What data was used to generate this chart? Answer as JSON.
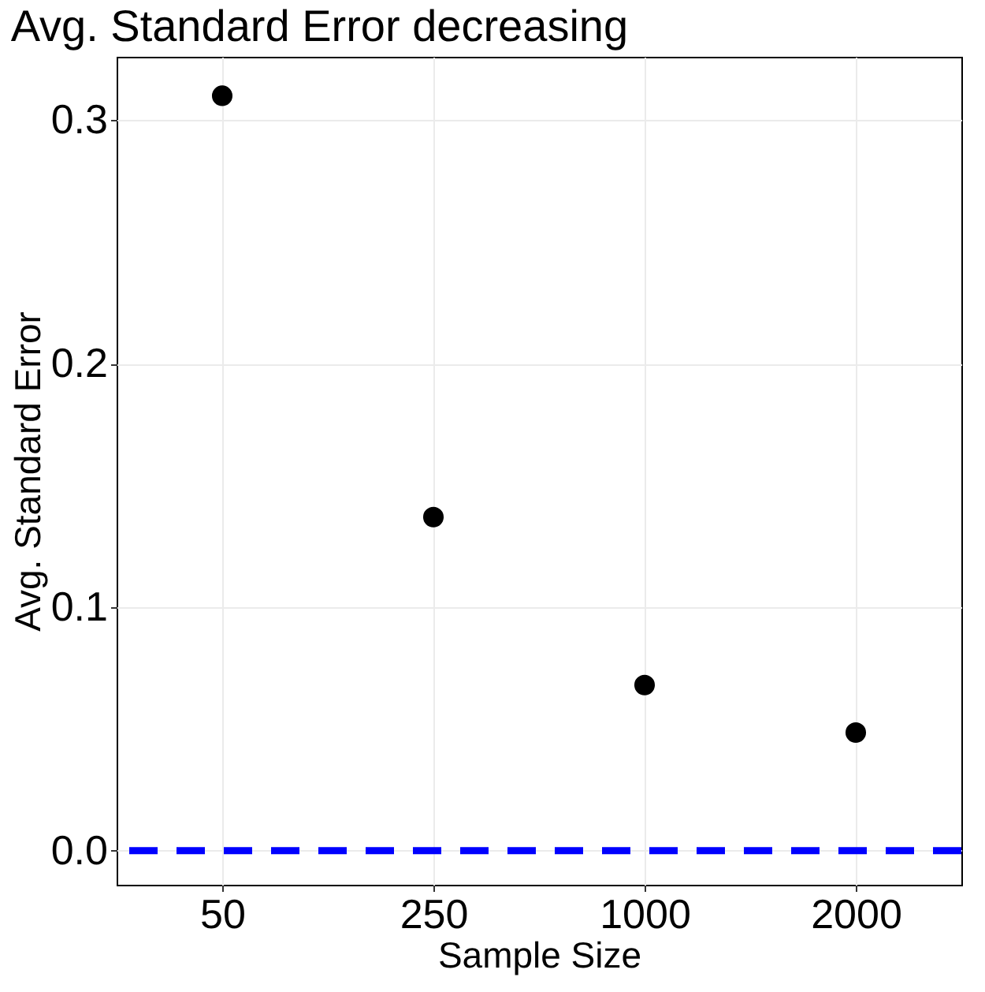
{
  "chart_data": {
    "type": "scatter",
    "title": "Avg. Standard Error decreasing",
    "xlabel": "Sample Size",
    "ylabel": "Avg. Standard Error",
    "categories": [
      "50",
      "250",
      "1000",
      "2000"
    ],
    "series": [
      {
        "color": "#000000",
        "values": [
          0.31,
          0.137,
          0.068,
          0.0485
        ]
      }
    ],
    "ylim": [
      -0.014,
      0.326
    ],
    "yticks": [
      {
        "value": 0,
        "label": "0.0"
      },
      {
        "value": 0.1,
        "label": "0.1"
      },
      {
        "value": 0.2,
        "label": "0.2"
      },
      {
        "value": 0.3,
        "label": "0.3"
      }
    ],
    "ref_lines": [
      {
        "axis": "y",
        "value": 0,
        "color": "#0000ff",
        "line_style": "dashed"
      }
    ],
    "grid": true,
    "marker": "circle"
  }
}
